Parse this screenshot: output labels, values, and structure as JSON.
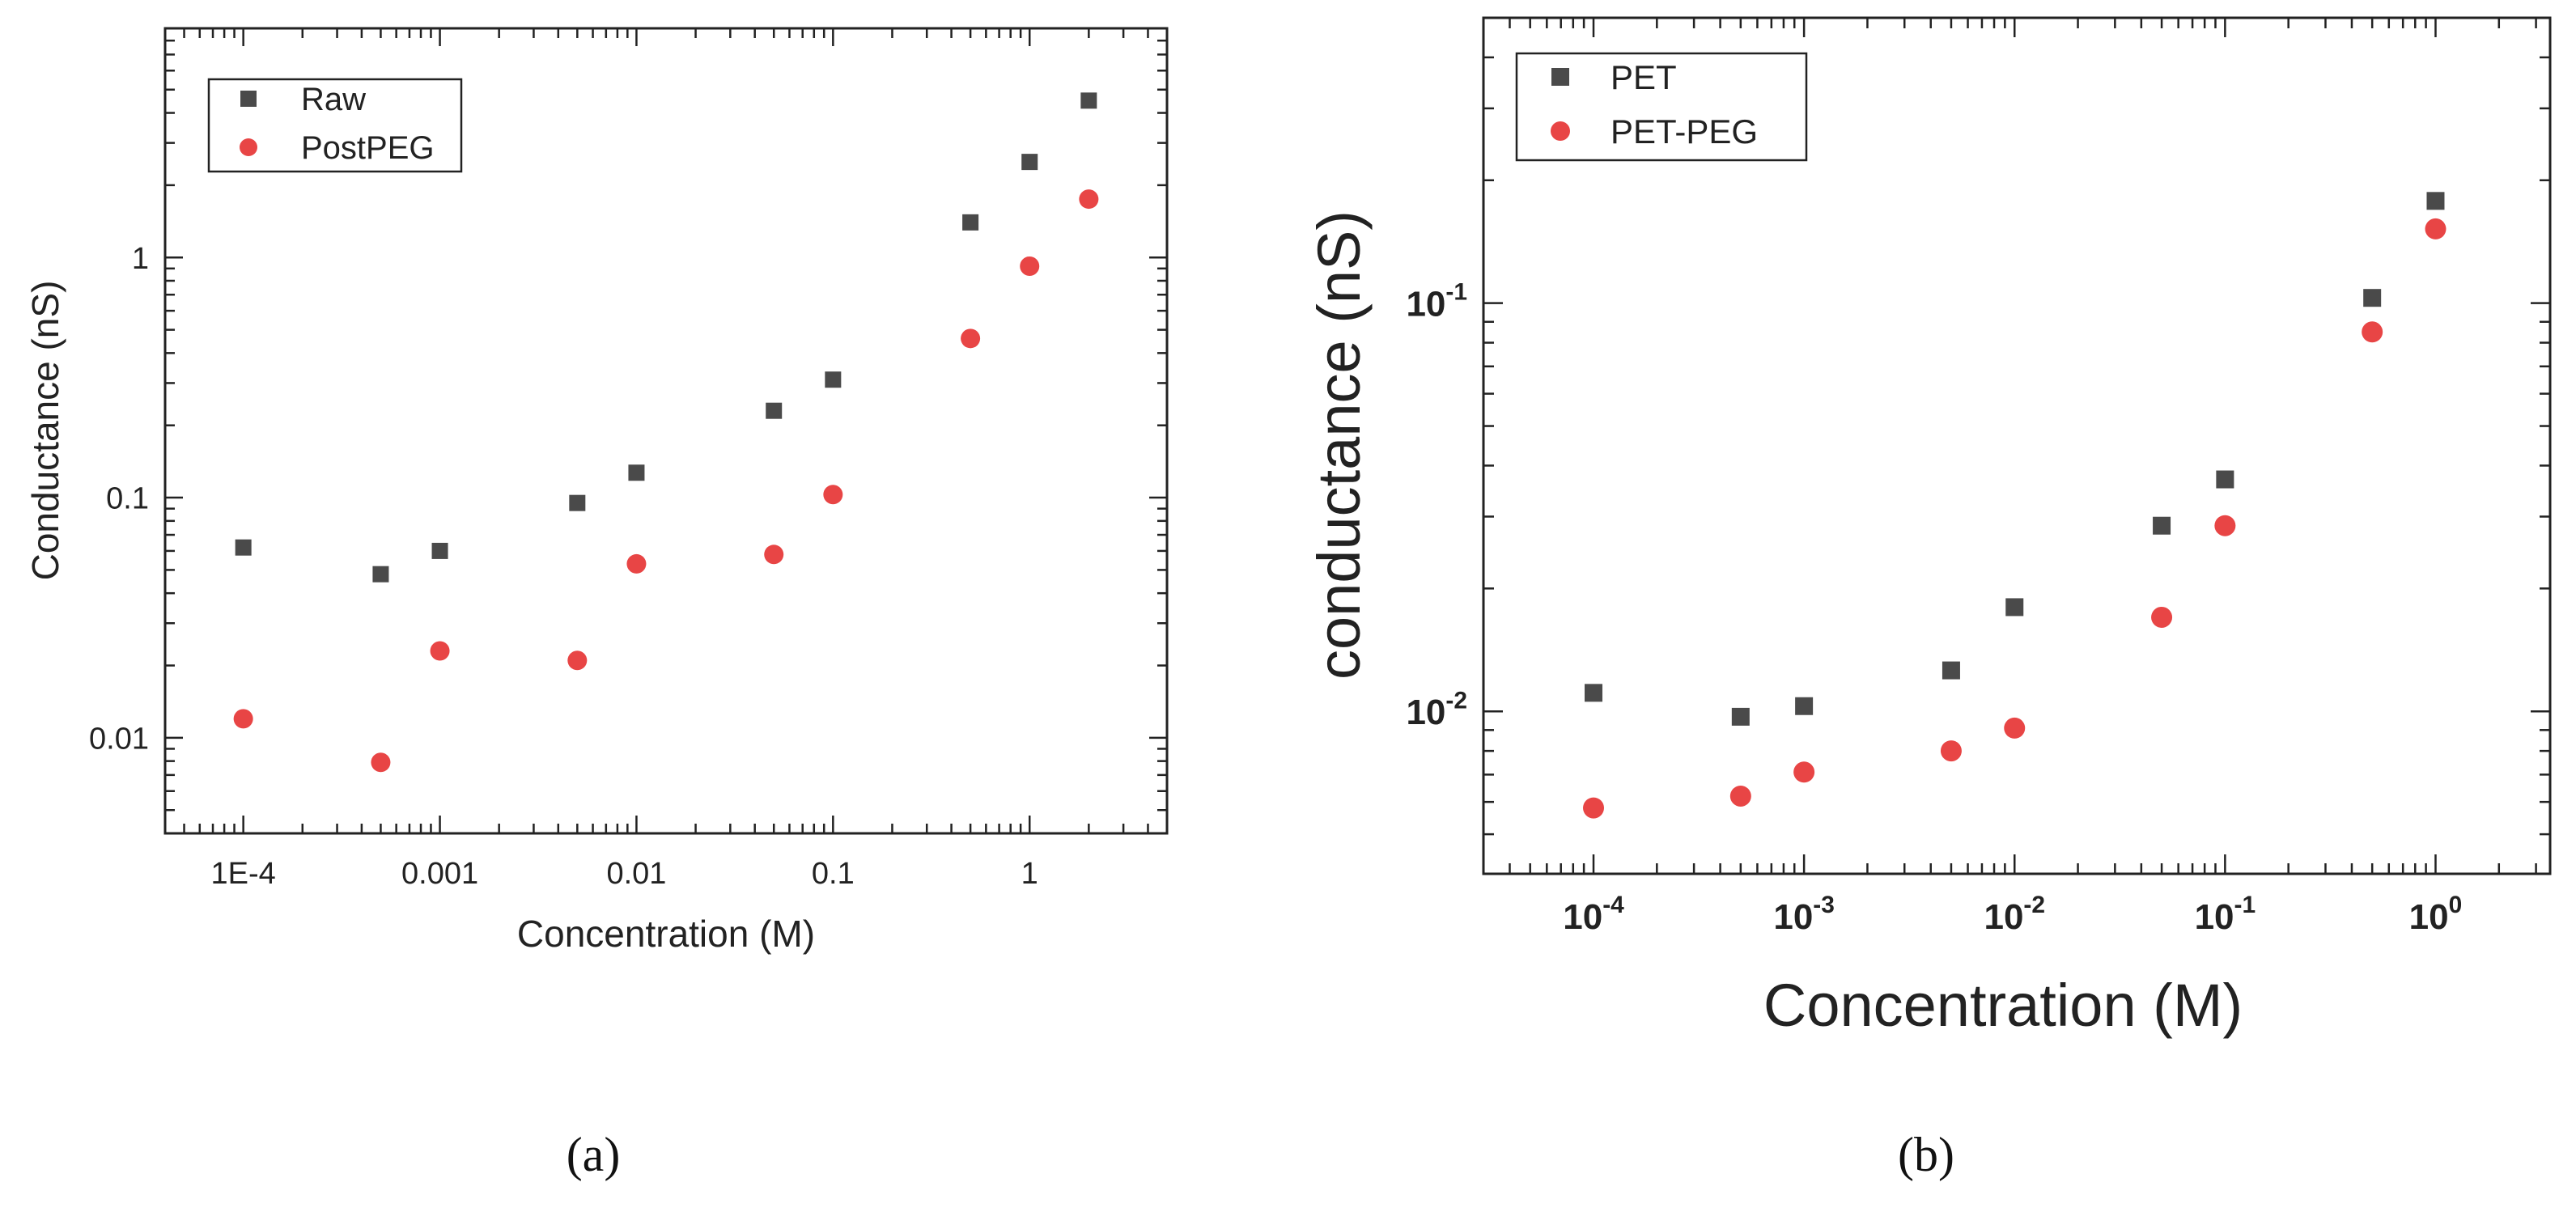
{
  "chart_data": [
    {
      "type": "scatter",
      "panel_label": "a",
      "title": "",
      "xlabel": "Concentration (M)",
      "ylabel": "Conductance (nS)",
      "xscale": "log",
      "yscale": "log",
      "xlim": [
        4e-05,
        5
      ],
      "ylim": [
        0.004,
        9
      ],
      "x_ticks": [
        {
          "value": 0.0001,
          "label": "1E-4"
        },
        {
          "value": 0.001,
          "label": "0.001"
        },
        {
          "value": 0.01,
          "label": "0.01"
        },
        {
          "value": 0.1,
          "label": "0.1"
        },
        {
          "value": 1,
          "label": "1"
        }
      ],
      "y_ticks": [
        {
          "value": 0.01,
          "label": "0.01"
        },
        {
          "value": 0.1,
          "label": "0.1"
        },
        {
          "value": 1,
          "label": "1"
        }
      ],
      "legend_position": "top-left",
      "series": [
        {
          "name": "Raw",
          "marker": "square",
          "color": "#4a4a4a",
          "x": [
            0.0001,
            0.0005,
            0.001,
            0.005,
            0.01,
            0.05,
            0.1,
            0.5,
            1,
            2
          ],
          "values": [
            0.062,
            0.048,
            0.06,
            0.095,
            0.127,
            0.23,
            0.31,
            1.4,
            2.5,
            4.5
          ]
        },
        {
          "name": "PostPEG",
          "marker": "circle",
          "color": "#e84545",
          "x": [
            0.0001,
            0.0005,
            0.001,
            0.005,
            0.01,
            0.05,
            0.1,
            0.5,
            1,
            2
          ],
          "values": [
            0.012,
            0.0079,
            0.023,
            0.021,
            0.053,
            0.058,
            0.103,
            0.46,
            0.92,
            1.75
          ]
        }
      ]
    },
    {
      "type": "scatter",
      "panel_label": "b",
      "title": "",
      "xlabel": "Concentration (M)",
      "ylabel": "conductance (nS)",
      "xscale": "log",
      "yscale": "log",
      "xlim": [
        3e-05,
        3.5
      ],
      "ylim": [
        0.004,
        0.5
      ],
      "x_ticks": [
        {
          "value": 0.0001,
          "base": "10",
          "exp": "-4"
        },
        {
          "value": 0.001,
          "base": "10",
          "exp": "-3"
        },
        {
          "value": 0.01,
          "base": "10",
          "exp": "-2"
        },
        {
          "value": 0.1,
          "base": "10",
          "exp": "-1"
        },
        {
          "value": 1,
          "base": "10",
          "exp": "0"
        }
      ],
      "y_ticks": [
        {
          "value": 0.01,
          "base": "10",
          "exp": "-2"
        },
        {
          "value": 0.1,
          "base": "10",
          "exp": "-1"
        }
      ],
      "legend_position": "top-left",
      "series": [
        {
          "name": "PET",
          "marker": "square",
          "color": "#4a4a4a",
          "x": [
            0.0001,
            0.0005,
            0.001,
            0.005,
            0.01,
            0.05,
            0.1,
            0.5,
            1
          ],
          "values": [
            0.0111,
            0.0097,
            0.0103,
            0.0126,
            0.018,
            0.0285,
            0.037,
            0.103,
            0.178
          ]
        },
        {
          "name": "PET-PEG",
          "marker": "circle",
          "color": "#e84545",
          "x": [
            0.0001,
            0.0005,
            0.001,
            0.005,
            0.01,
            0.05,
            0.1,
            0.5,
            1
          ],
          "values": [
            0.0058,
            0.0062,
            0.0071,
            0.008,
            0.0091,
            0.017,
            0.0285,
            0.085,
            0.152
          ]
        }
      ]
    }
  ],
  "captions": {
    "a": "(a)",
    "b": "(b)"
  }
}
